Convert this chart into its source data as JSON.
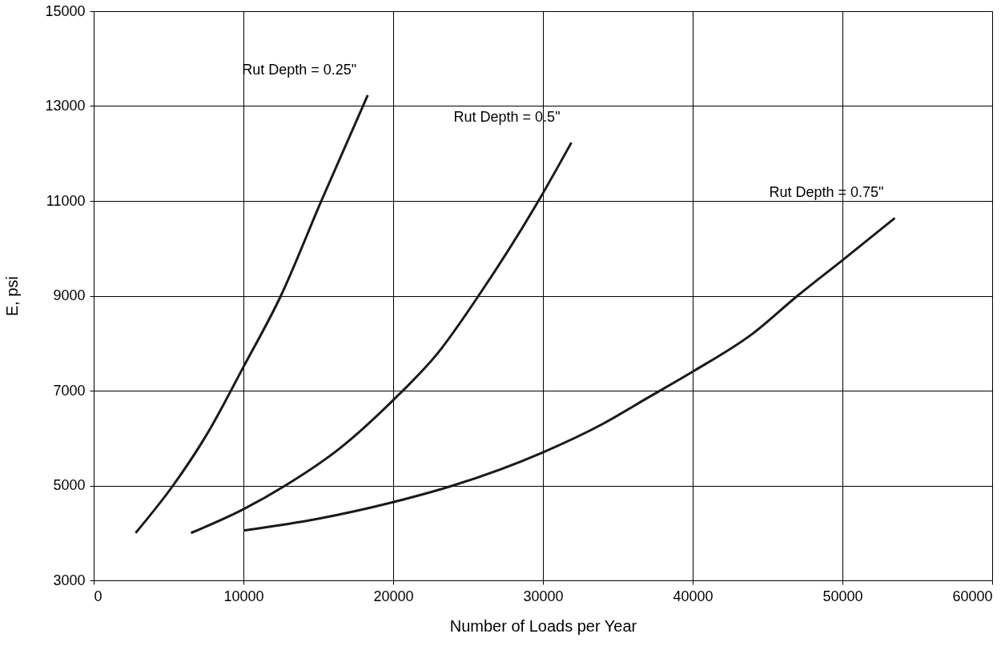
{
  "chart_data": {
    "type": "line",
    "xlabel": "Number of Loads per Year",
    "ylabel": "E, psi",
    "xlim": [
      0,
      60000
    ],
    "xticks": [
      0,
      10000,
      20000,
      30000,
      40000,
      50000,
      60000
    ],
    "ylim": [
      3000,
      15000
    ],
    "yticks": [
      3000,
      5000,
      7000,
      9000,
      11000,
      13000,
      15000
    ],
    "grid": true,
    "marker": "none",
    "line_style": "solid",
    "series": [
      {
        "name": "Rut Depth = 0.25\"",
        "color": "#1a1a1a",
        "x": [
          2800,
          5300,
          7600,
          10000,
          12500,
          15200,
          18300
        ],
        "values": [
          4000,
          5000,
          6100,
          7500,
          9000,
          11000,
          13230
        ]
      },
      {
        "name": "Rut Depth = 0.5\"",
        "color": "#1a1a1a",
        "x": [
          6500,
          10000,
          12800,
          16500,
          20000,
          23000,
          25700,
          29700,
          31900
        ],
        "values": [
          4000,
          4500,
          5000,
          5800,
          6800,
          7800,
          9000,
          11000,
          12230
        ]
      },
      {
        "name": "Rut Depth = 0.75\"",
        "color": "#1a1a1a",
        "x": [
          10000,
          15000,
          20000,
          24000,
          30000,
          34000,
          37000,
          40000,
          44000,
          47000,
          50000,
          53500
        ],
        "values": [
          4050,
          4300,
          4650,
          5000,
          5700,
          6300,
          6850,
          7400,
          8200,
          9000,
          9750,
          10640
        ]
      }
    ]
  }
}
